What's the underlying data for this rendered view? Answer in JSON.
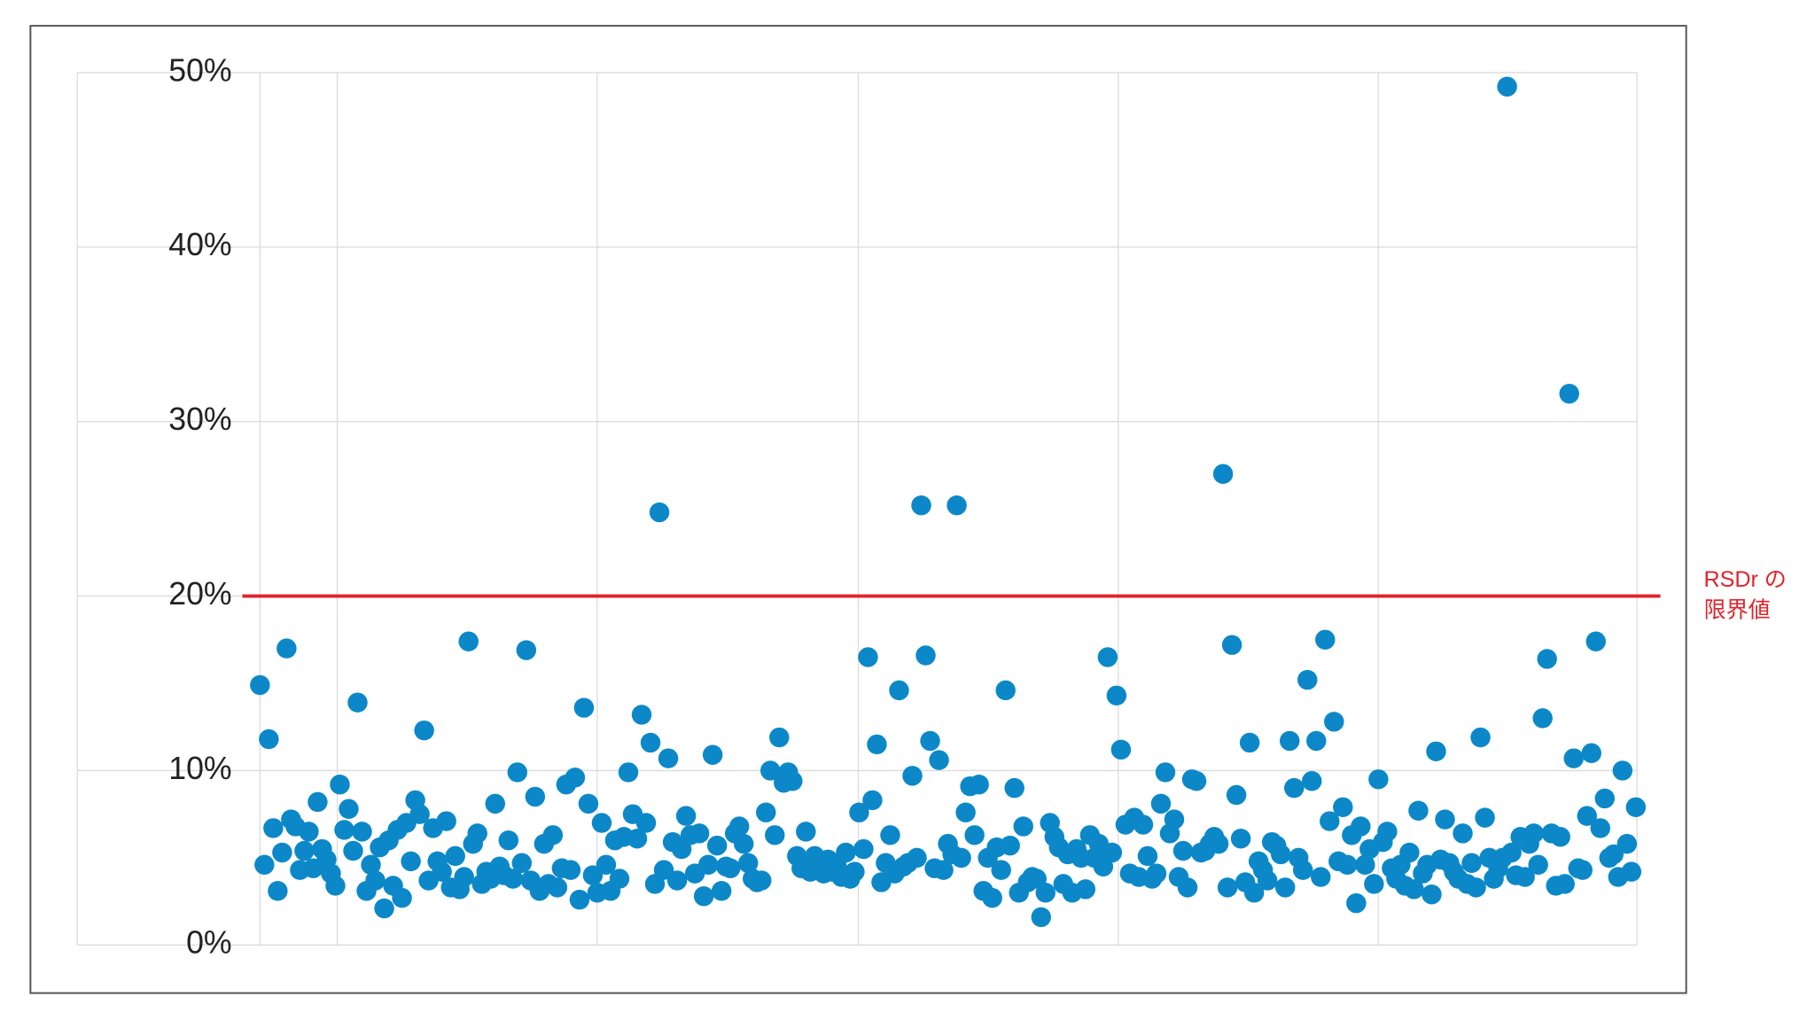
{
  "chart_data": {
    "type": "scatter",
    "series": [
      {
        "color": "#0c88c9",
        "values": [
          14.9,
          4.6,
          11.8,
          6.7,
          3.1,
          5.3,
          17.0,
          7.2,
          6.8,
          4.3,
          5.4,
          6.5,
          4.4,
          8.2,
          5.5,
          4.9,
          4.1,
          3.4,
          9.2,
          6.6,
          7.8,
          5.4,
          13.9,
          6.5,
          3.1,
          4.6,
          3.7,
          5.6,
          2.1,
          6.0,
          3.4,
          6.6,
          2.7,
          7.0,
          4.8,
          8.3,
          7.5,
          12.3,
          3.7,
          6.7,
          4.8,
          4.2,
          7.1,
          3.3,
          5.1,
          3.2,
          3.9,
          17.4,
          5.8,
          6.4,
          3.5,
          4.2,
          3.8,
          8.1,
          4.5,
          4.0,
          6.0,
          3.8,
          9.9,
          4.7,
          16.9,
          3.7,
          8.5,
          3.1,
          5.8,
          3.5,
          6.3,
          3.3,
          4.4,
          9.2,
          4.3,
          9.6,
          2.6,
          13.6,
          8.1,
          4.0,
          3.0,
          7.0,
          4.6,
          3.1,
          6.0,
          3.8,
          6.2,
          9.9,
          7.5,
          6.1,
          13.2,
          7.0,
          11.6,
          3.5,
          24.8,
          4.3,
          10.7,
          5.9,
          3.7,
          5.5,
          7.4,
          6.3,
          4.1,
          6.4,
          2.8,
          4.6,
          10.9,
          5.7,
          3.1,
          4.5,
          4.4,
          6.4,
          6.8,
          5.8,
          4.7,
          3.8,
          3.6,
          3.7,
          7.6,
          10.0,
          6.3,
          11.9,
          9.3,
          9.9,
          9.4,
          5.1,
          4.4,
          6.5,
          4.2,
          5.1,
          4.6,
          4.1,
          4.9,
          4.2,
          4.5,
          3.9,
          5.3,
          3.8,
          4.2,
          7.6,
          5.5,
          16.5,
          8.3,
          11.5,
          3.6,
          4.7,
          6.3,
          4.1,
          14.6,
          4.5,
          4.7,
          9.7,
          5.0,
          25.2,
          16.6,
          11.7,
          4.4,
          10.6,
          4.3,
          5.8,
          5.2,
          25.2,
          5.0,
          7.6,
          9.1,
          6.3,
          9.2,
          3.1,
          5.0,
          2.7,
          5.6,
          4.3,
          14.6,
          5.7,
          9.0,
          3.0,
          6.8,
          3.6,
          3.9,
          3.8,
          1.6,
          3.0,
          7.0,
          6.2,
          5.6,
          3.5,
          5.2,
          3.0,
          5.5,
          5.0,
          3.2,
          6.3,
          5.0,
          5.8,
          4.5,
          16.5,
          5.3,
          14.3,
          11.2,
          6.9,
          4.1,
          7.3,
          3.9,
          6.9,
          5.1,
          3.8,
          4.1,
          8.1,
          9.9,
          6.4,
          7.2,
          3.9,
          5.4,
          3.3,
          9.5,
          9.4,
          5.3,
          5.4,
          5.8,
          6.2,
          5.8,
          27.0,
          3.3,
          17.2,
          8.6,
          6.1,
          3.6,
          11.6,
          3.0,
          4.8,
          4.3,
          3.7,
          5.9,
          5.7,
          5.2,
          3.3,
          11.7,
          9.0,
          5.0,
          4.3,
          15.2,
          9.4,
          11.7,
          3.9,
          17.5,
          7.1,
          12.8,
          4.8,
          7.9,
          4.6,
          6.3,
          2.4,
          6.8,
          4.6,
          5.5,
          3.5,
          9.5,
          5.9,
          6.5,
          4.4,
          3.8,
          4.6,
          3.4,
          5.3,
          3.2,
          7.7,
          4.1,
          4.6,
          2.9,
          11.1,
          4.9,
          7.2,
          4.7,
          4.2,
          3.8,
          6.4,
          3.5,
          4.7,
          3.3,
          11.9,
          7.3,
          5.0,
          3.8,
          4.4,
          5.0,
          49.2,
          5.3,
          4.0,
          6.2,
          3.9,
          5.8,
          6.4,
          4.6,
          13.0,
          16.4,
          6.4,
          3.4,
          6.2,
          3.5,
          31.6,
          10.7,
          4.4,
          4.3,
          7.4,
          11.0,
          17.4,
          6.7,
          8.4,
          5.0,
          5.2,
          3.9,
          10.0,
          5.8,
          4.2,
          7.9
        ]
      }
    ],
    "ylim": [
      0,
      50
    ],
    "yticks": [
      {
        "value": 0,
        "label": "0%"
      },
      {
        "value": 10,
        "label": "10%"
      },
      {
        "value": 20,
        "label": "20%"
      },
      {
        "value": 30,
        "label": "30%"
      },
      {
        "value": 40,
        "label": "40%"
      },
      {
        "value": 50,
        "label": "50%"
      }
    ],
    "grid": true,
    "threshold": {
      "value": 20,
      "color": "#e0242b",
      "label": [
        "RSDr の",
        "限界値"
      ]
    }
  }
}
